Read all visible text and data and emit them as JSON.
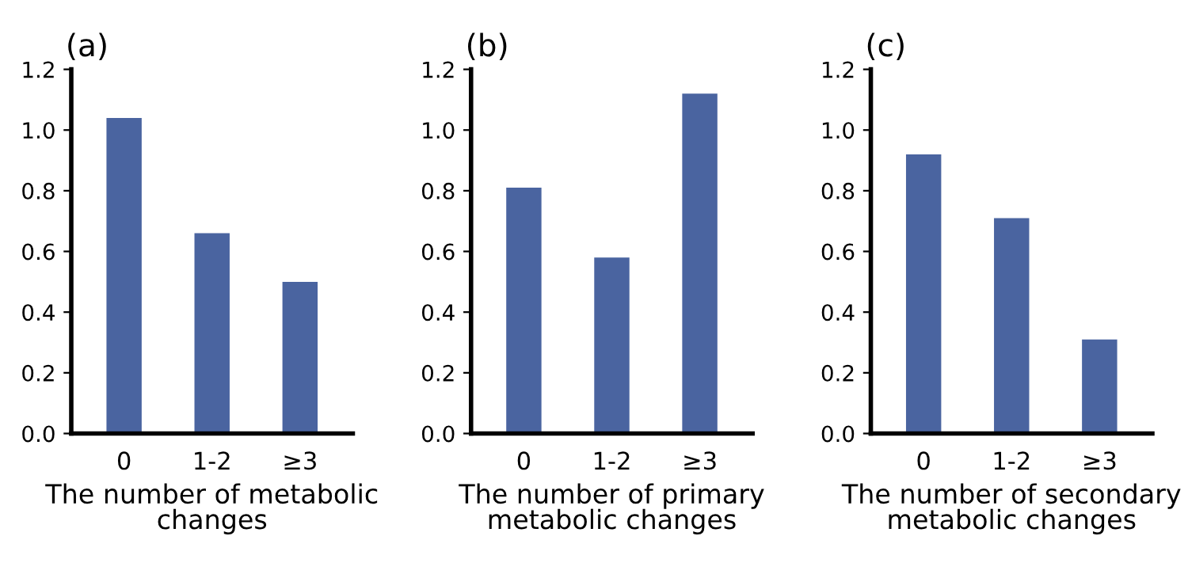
{
  "chart_data": [
    {
      "type": "bar",
      "title": "(a)",
      "xlabel": "The number of metabolic\nchanges",
      "categories": [
        "0",
        "1-2",
        "≥3"
      ],
      "values": [
        1.04,
        0.66,
        0.5
      ],
      "color": "#4a64a0",
      "ylim": [
        0,
        1.2
      ],
      "yticks": [
        {
          "value": 0,
          "label": "0.0"
        },
        {
          "value": 0.2,
          "label": "0.2"
        },
        {
          "value": 0.4,
          "label": "0.4"
        },
        {
          "value": 0.6,
          "label": "0.6"
        },
        {
          "value": 0.8,
          "label": "0.8"
        },
        {
          "value": 1.0,
          "label": "1.0"
        },
        {
          "value": 1.2,
          "label": "1.2"
        }
      ],
      "grid": false
    },
    {
      "type": "bar",
      "title": "(b)",
      "xlabel": "The number of primary\nmetabolic changes",
      "categories": [
        "0",
        "1-2",
        "≥3"
      ],
      "values": [
        0.81,
        0.58,
        1.12
      ],
      "color": "#4a64a0",
      "ylim": [
        0,
        1.2
      ],
      "yticks": [
        {
          "value": 0,
          "label": "0.0"
        },
        {
          "value": 0.2,
          "label": "0.2"
        },
        {
          "value": 0.4,
          "label": "0.4"
        },
        {
          "value": 0.6,
          "label": "0.6"
        },
        {
          "value": 0.8,
          "label": "0.8"
        },
        {
          "value": 1.0,
          "label": "1.0"
        },
        {
          "value": 1.2,
          "label": "1.2"
        }
      ],
      "grid": false
    },
    {
      "type": "bar",
      "title": "(c)",
      "xlabel": "The number of secondary\nmetabolic changes",
      "categories": [
        "0",
        "1-2",
        "≥3"
      ],
      "values": [
        0.92,
        0.71,
        0.31
      ],
      "color": "#4a64a0",
      "ylim": [
        0,
        1.2
      ],
      "yticks": [
        {
          "value": 0,
          "label": "0.0"
        },
        {
          "value": 0.2,
          "label": "0.2"
        },
        {
          "value": 0.4,
          "label": "0.4"
        },
        {
          "value": 0.6,
          "label": "0.6"
        },
        {
          "value": 0.8,
          "label": "0.8"
        },
        {
          "value": 1.0,
          "label": "1.0"
        },
        {
          "value": 1.2,
          "label": "1.2"
        }
      ],
      "grid": false
    }
  ]
}
